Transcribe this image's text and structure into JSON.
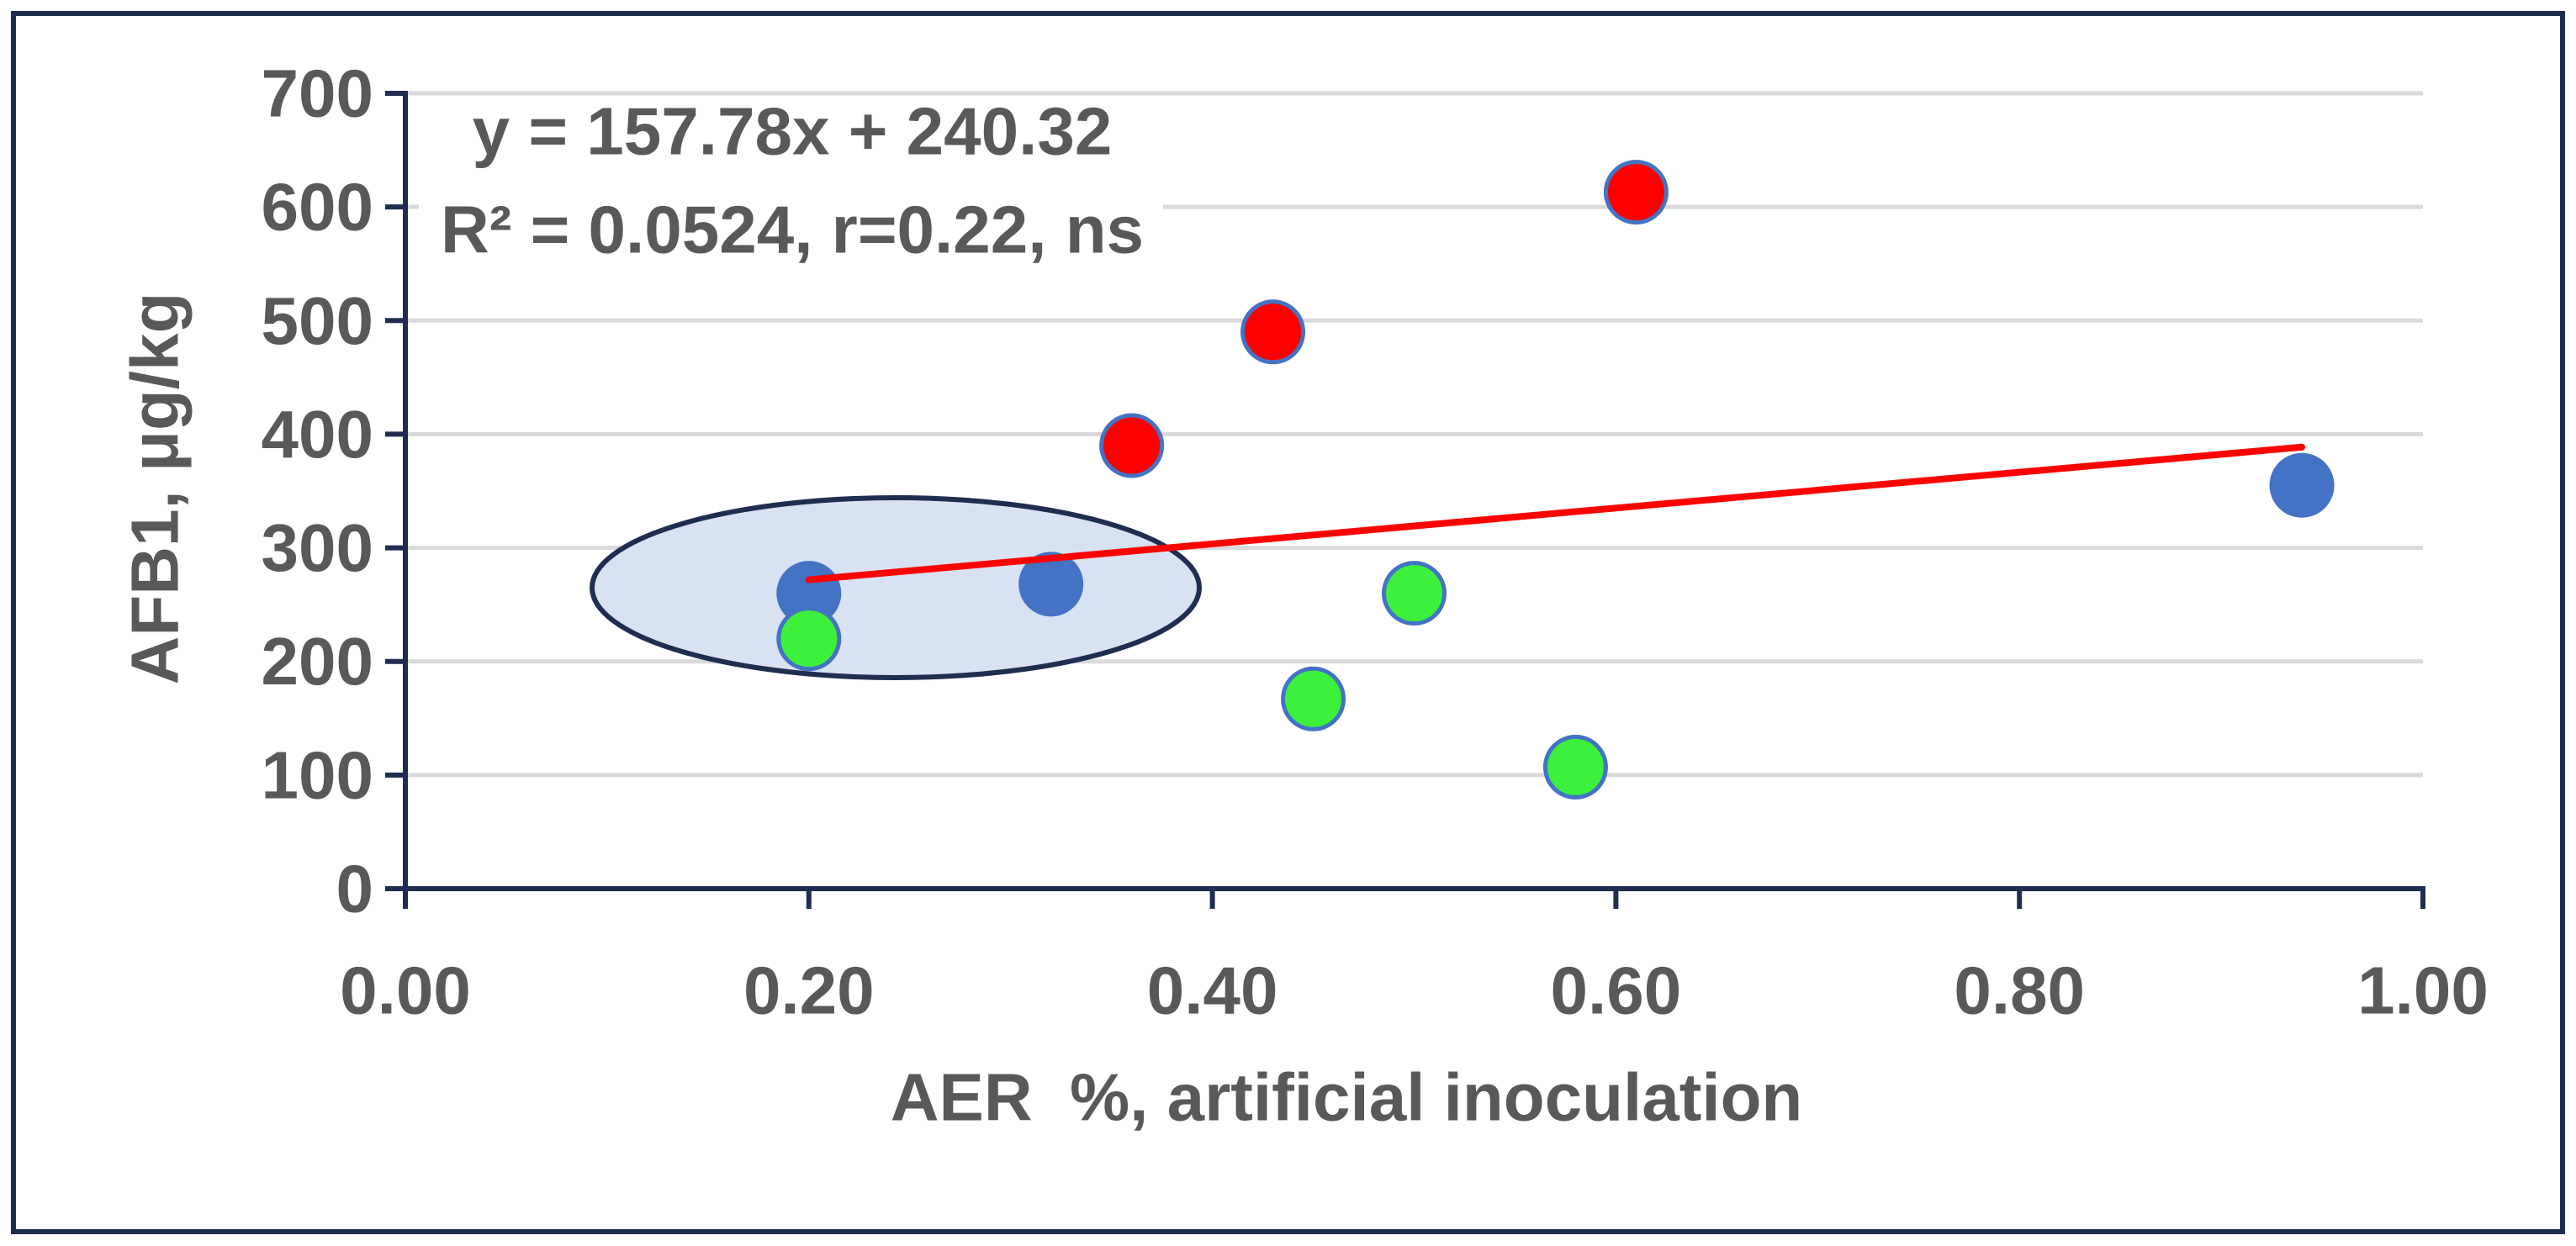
{
  "colors": {
    "frame": "#1F2D50",
    "axis": "#1F2D50",
    "grid": "#D9D9D9",
    "text": "#595959",
    "ellipse_fill": "#D9E2F3",
    "ellipse_stroke": "#1F2D50",
    "label_box": "#FFFFFF"
  },
  "chart_data": {
    "type": "scatter",
    "title": "",
    "xlabel": "AER  %, artificial inoculation",
    "ylabel": "AFB1, μg/kg",
    "xlim": [
      0,
      1
    ],
    "ylim": [
      0,
      700
    ],
    "x_ticks": [
      "0.00",
      "0.20",
      "0.40",
      "0.60",
      "0.80",
      "1.00"
    ],
    "y_ticks": [
      "0",
      "100",
      "200",
      "300",
      "400",
      "500",
      "600",
      "700"
    ],
    "grid_y": true,
    "grid_x": false,
    "series": [
      {
        "color": "#4472C4",
        "stroke": "#4472C4",
        "points": [
          {
            "x": 0.2,
            "y": 260
          },
          {
            "x": 0.32,
            "y": 268
          },
          {
            "x": 0.94,
            "y": 355
          }
        ]
      },
      {
        "color": "#3CF03C",
        "stroke": "#4472C4",
        "points": [
          {
            "x": 0.2,
            "y": 220
          },
          {
            "x": 0.45,
            "y": 167
          },
          {
            "x": 0.5,
            "y": 260
          },
          {
            "x": 0.58,
            "y": 107
          }
        ]
      },
      {
        "color": "#FF0000",
        "stroke": "#4472C4",
        "points": [
          {
            "x": 0.36,
            "y": 390
          },
          {
            "x": 0.43,
            "y": 490
          },
          {
            "x": 0.61,
            "y": 613
          }
        ]
      }
    ],
    "trendline": {
      "equation": "y = 157.78x + 240.32",
      "stats": "R² = 0.0524, r=0.22, ns",
      "slope": 157.78,
      "intercept": 240.32,
      "x_range": [
        0.2,
        0.94
      ],
      "color": "#FF0000"
    }
  }
}
